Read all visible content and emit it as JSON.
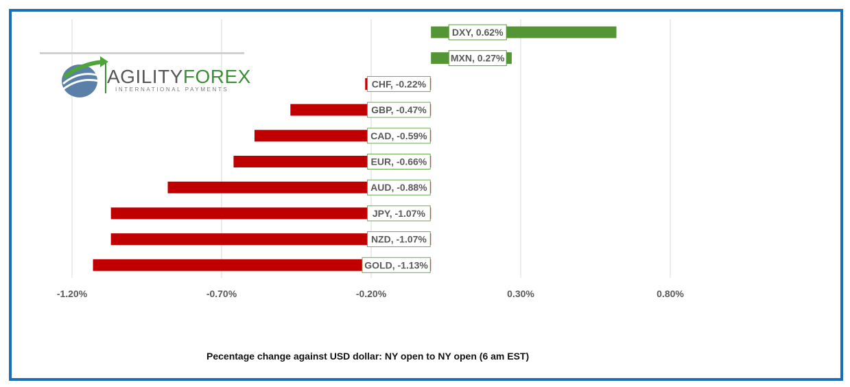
{
  "chart_data": {
    "type": "bar",
    "orientation": "horizontal",
    "categories": [
      "DXY",
      "MXN",
      "CHF",
      "GBP",
      "CAD",
      "EUR",
      "AUD",
      "JPY",
      "NZD",
      "GOLD"
    ],
    "values": [
      0.62,
      0.27,
      -0.22,
      -0.47,
      -0.59,
      -0.66,
      -0.88,
      -1.07,
      -1.07,
      -1.13
    ],
    "data_labels": [
      "DXY, 0.62%",
      "MXN, 0.27%",
      "CHF, -0.22%",
      "GBP, -0.47%",
      "CAD, -0.59%",
      "EUR, -0.66%",
      "AUD, -0.88%",
      "JPY, -1.07%",
      "NZD, -1.07%",
      "GOLD, -1.13%"
    ],
    "xlim": [
      -1.2,
      0.8
    ],
    "xticks": [
      -1.2,
      -0.7,
      -0.2,
      0.3,
      0.8
    ],
    "xtick_labels": [
      "-1.20%",
      "-0.70%",
      "-0.20%",
      "0.30%",
      "0.80%"
    ],
    "grid": true,
    "colors": {
      "positive": "#549535",
      "negative": "#c00000"
    },
    "xlabel": "Pecentage change against USD dollar: NY open to NY open  (6 am EST)"
  },
  "logo": {
    "brand_part1": "AGILITY",
    "brand_part2": "FOREX",
    "tagline": "INTERNATIONAL PAYMENTS"
  },
  "colors": {
    "frame": "#1b6fb8",
    "grid": "#d9d9d9",
    "label_border_pos": "#549535",
    "label_border_neg": "#6aa84f"
  }
}
